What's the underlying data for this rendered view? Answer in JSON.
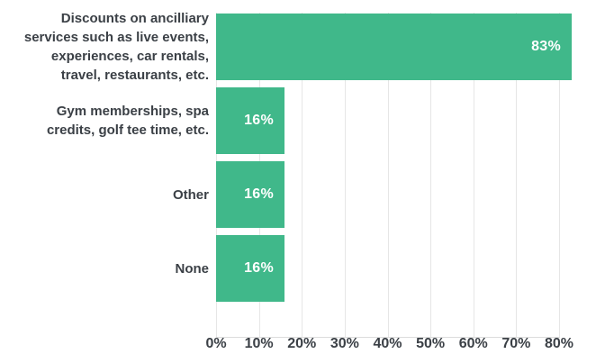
{
  "chart_data": {
    "type": "bar",
    "orientation": "horizontal",
    "title": "",
    "categories": [
      "Discounts on ancilliary services such as live events, experiences, car rentals, travel, restaurants, etc.",
      "Gym memberships, spa credits, golf tee time, etc.",
      "Other",
      "None"
    ],
    "values": [
      83,
      16,
      16,
      16
    ],
    "value_labels": [
      "83%",
      "16%",
      "16%",
      "16%"
    ],
    "x_ticks": [
      {
        "value": 0,
        "label": "0%"
      },
      {
        "value": 10,
        "label": "10%"
      },
      {
        "value": 20,
        "label": "20%"
      },
      {
        "value": 30,
        "label": "30%"
      },
      {
        "value": 40,
        "label": "40%"
      },
      {
        "value": 50,
        "label": "50%"
      },
      {
        "value": 60,
        "label": "60%"
      },
      {
        "value": 70,
        "label": "70%"
      },
      {
        "value": 80,
        "label": "80%"
      }
    ],
    "xlim": [
      0,
      86
    ],
    "grid": true,
    "legend": false,
    "colors": {
      "bar": "#40b88a",
      "value_label": "#ffffff",
      "category_label": "#3b4046",
      "tick_label": "#3b4046",
      "gridline": "#e6e6e6",
      "axis_line": "#dcdcdc",
      "background": "#ffffff"
    }
  }
}
